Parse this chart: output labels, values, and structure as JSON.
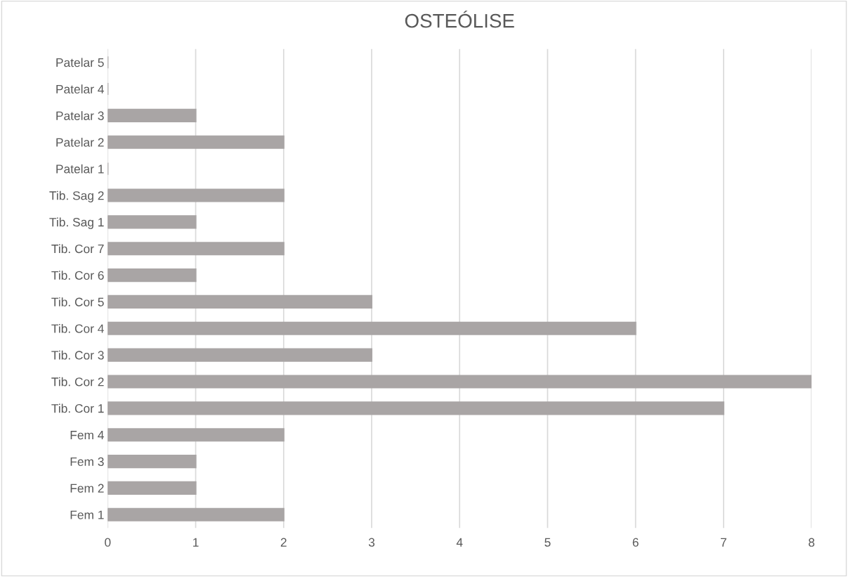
{
  "chart_data": {
    "type": "bar",
    "orientation": "horizontal",
    "title": "OSTEÓLISE",
    "categories": [
      "Patelar 5",
      "Patelar 4",
      "Patelar 3",
      "Patelar 2",
      "Patelar 1",
      "Tib. Sag 2",
      "Tib. Sag 1",
      "Tib. Cor 7",
      "Tib. Cor 6",
      "Tib. Cor 5",
      "Tib. Cor 4",
      "Tib. Cor 3",
      "Tib. Cor 2",
      "Tib. Cor 1",
      "Fem 4",
      "Fem 3",
      "Fem 2",
      "Fem 1"
    ],
    "values": [
      0,
      0,
      1,
      2,
      0,
      2,
      1,
      2,
      1,
      3,
      6,
      3,
      8,
      7,
      2,
      1,
      1,
      2
    ],
    "color": "#a9a5a5",
    "xlim": [
      0,
      8
    ],
    "xticks": [
      0,
      1,
      2,
      3,
      4,
      5,
      6,
      7,
      8
    ],
    "grid": "x",
    "legend": false
  }
}
